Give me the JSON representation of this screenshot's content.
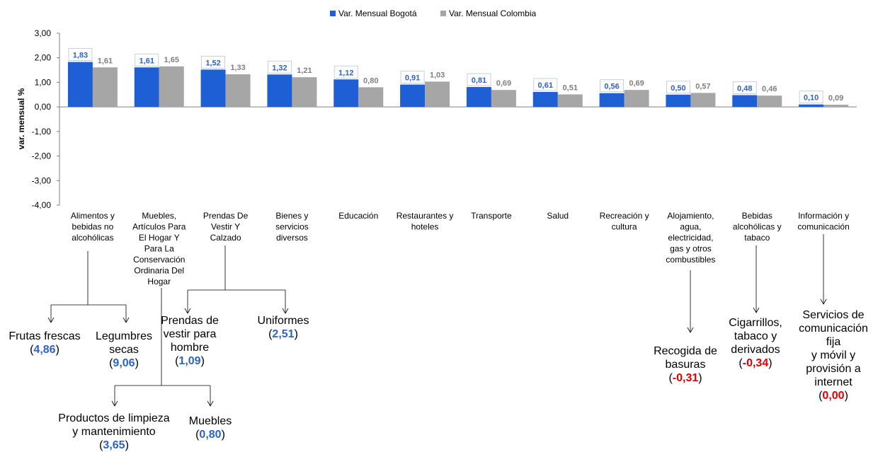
{
  "chart_data": {
    "type": "bar",
    "ylabel": "var. mensual %",
    "ylim": [
      -4,
      3
    ],
    "yticks": [
      "3,00",
      "2,00",
      "1,00",
      "0,00",
      "-1,00",
      "-2,00",
      "-3,00",
      "-4,00"
    ],
    "legend_position": "top-center",
    "categories": [
      "Alimentos y bebidas no alcohólicas",
      "Muebles, Artículos Para El Hogar Y Para La Conservación Ordinaria Del Hogar",
      "Prendas De Vestir Y Calzado",
      "Bienes y servicios diversos",
      "Educación",
      "Restaurantes y hoteles",
      "Transporte",
      "Salud",
      "Recreación y cultura",
      "Alojamiento, agua, electricidad, gas y otros combustibles",
      "Bebidas alcohólicas y tabaco",
      "Información y comunicación"
    ],
    "category_lines": [
      [
        "Alimentos y",
        "bebidas no",
        "alcohólicas"
      ],
      [
        "Muebles,",
        "Artículos Para",
        "El Hogar Y",
        "Para La",
        "Conservación",
        "Ordinaria Del",
        "Hogar"
      ],
      [
        "Prendas De",
        "Vestir Y",
        "Calzado"
      ],
      [
        "Bienes y",
        "servicios",
        "diversos"
      ],
      [
        "Educación"
      ],
      [
        "Restaurantes y",
        "hoteles"
      ],
      [
        "Transporte"
      ],
      [
        "Salud"
      ],
      [
        "Recreación y",
        "cultura"
      ],
      [
        "Alojamiento,",
        "agua,",
        "electricidad,",
        "gas y otros",
        "combustibles"
      ],
      [
        "Bebidas",
        "alcohólicas y",
        "tabaco"
      ],
      [
        "Información y",
        "comunicación"
      ]
    ],
    "series": [
      {
        "name": "Var. Mensual Bogotá",
        "color": "#1f5fd6",
        "label_color": "#2e62c4",
        "values": [
          1.83,
          1.61,
          1.52,
          1.32,
          1.12,
          0.91,
          0.81,
          0.61,
          0.56,
          0.5,
          0.48,
          0.1
        ],
        "labels": [
          "1,83",
          "1,61",
          "1,52",
          "1,32",
          "1,12",
          "0,91",
          "0,81",
          "0,61",
          "0,56",
          "0,50",
          "0,48",
          "0,10"
        ]
      },
      {
        "name": "Var. Mensual Colombia",
        "color": "#a6a6a6",
        "label_color": "#7f7f7f",
        "values": [
          1.61,
          1.65,
          1.33,
          1.21,
          0.8,
          1.03,
          0.69,
          0.51,
          0.69,
          0.57,
          0.46,
          0.09
        ],
        "labels": [
          "1,61",
          "1,65",
          "1,33",
          "1,21",
          "0,80",
          "1,03",
          "0,69",
          "0,51",
          "0,69",
          "0,57",
          "0,46",
          "0,09"
        ]
      }
    ],
    "subcategories": [
      {
        "parent": 0,
        "name": "Frutas frescas",
        "value": "4,86",
        "value_color": "#2e62c4"
      },
      {
        "parent": 0,
        "name": "Legumbres\nsecas",
        "value": "9,06",
        "value_color": "#2e62c4"
      },
      {
        "parent": 1,
        "name": "Productos de limpieza\ny mantenimiento",
        "value": "3,65",
        "value_color": "#2e62c4"
      },
      {
        "parent": 1,
        "name": "Muebles",
        "value": "0,80",
        "value_color": "#2e62c4"
      },
      {
        "parent": 2,
        "name": "Prendas de\nvestir para\nhombre",
        "value": "1,09",
        "value_color": "#2e62c4"
      },
      {
        "parent": 2,
        "name": "Uniformes",
        "value": "2,51",
        "value_color": "#2e62c4"
      },
      {
        "parent": 9,
        "name": "Recogida de\nbasuras",
        "value": "-0,31",
        "value_color": "#e00000"
      },
      {
        "parent": 10,
        "name": "Cigarrillos,\ntabaco y\nderivados",
        "value": "-0,34",
        "value_color": "#e00000"
      },
      {
        "parent": 11,
        "name": "Servicios de\ncomunicación fija\ny móvil y\nprovisión a\ninternet",
        "value": "0,00",
        "value_color": "#e00000"
      }
    ]
  }
}
